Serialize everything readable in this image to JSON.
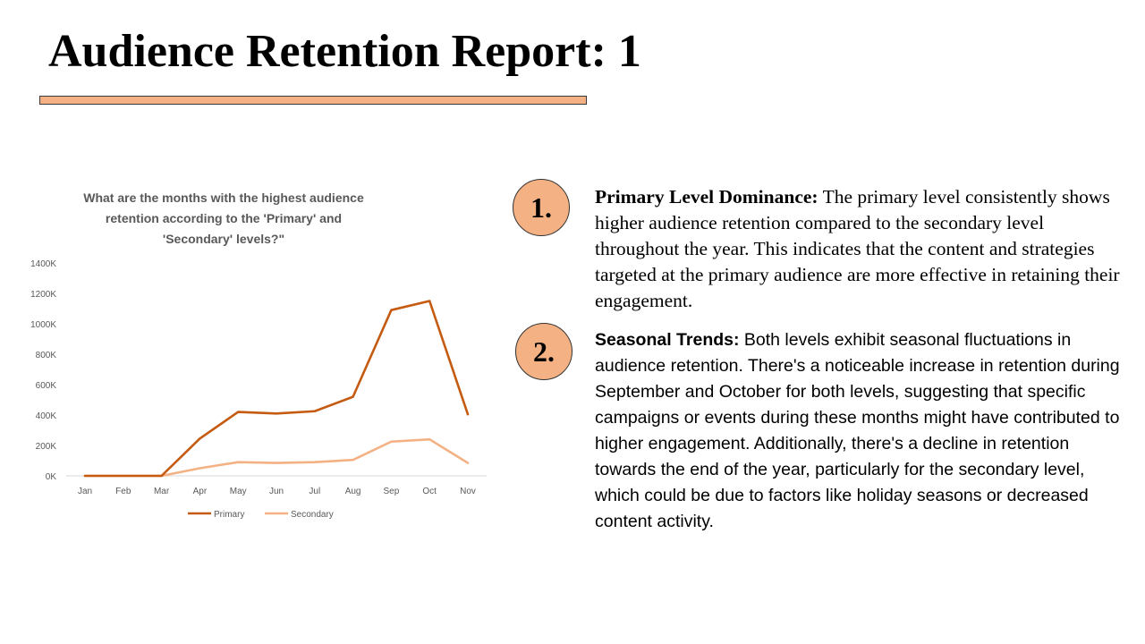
{
  "slide": {
    "title": "Audience Retention Report: 1"
  },
  "points": [
    {
      "number": "1.",
      "heading": "Primary Level Dominance:",
      "text": " The primary level consistently shows higher audience retention compared to the secondary level throughout the year. This indicates that the content and strategies targeted at the primary audience are more effective in retaining their engagement."
    },
    {
      "number": "2.",
      "heading": "Seasonal Trends:",
      "text": " Both levels exhibit seasonal fluctuations in audience retention. There's a noticeable increase in retention during September and October for both levels, suggesting that specific campaigns or events during these months might have contributed to higher engagement. Additionally, there's a decline in retention towards the end of the year, particularly for the secondary level, which could be due to factors like holiday seasons or decreased content activity."
    }
  ],
  "colors": {
    "accent": "#f4b183",
    "primary_series": "#c55a11",
    "secondary_series": "#f4b183"
  },
  "chart_data": {
    "type": "line",
    "title": "What are the months with the highest audience retention according to the 'Primary' and 'Secondary' levels?\"",
    "categories": [
      "Jan",
      "Feb",
      "Mar",
      "Apr",
      "May",
      "Jun",
      "Jul",
      "Aug",
      "Sep",
      "Oct",
      "Nov"
    ],
    "series": [
      {
        "name": "Primary",
        "color": "#c55a11",
        "values": [
          0,
          0,
          0,
          245000,
          420000,
          410000,
          425000,
          520000,
          1090000,
          1150000,
          405000
        ]
      },
      {
        "name": "Secondary",
        "color": "#f4b183",
        "values": [
          0,
          0,
          0,
          50000,
          90000,
          85000,
          90000,
          105000,
          225000,
          240000,
          85000
        ]
      }
    ],
    "yticks": [
      "0K",
      "200K",
      "400K",
      "600K",
      "800K",
      "1000K",
      "1200K",
      "1400K"
    ],
    "ylim": [
      0,
      1400000
    ],
    "grid": false,
    "legend": "bottom"
  }
}
